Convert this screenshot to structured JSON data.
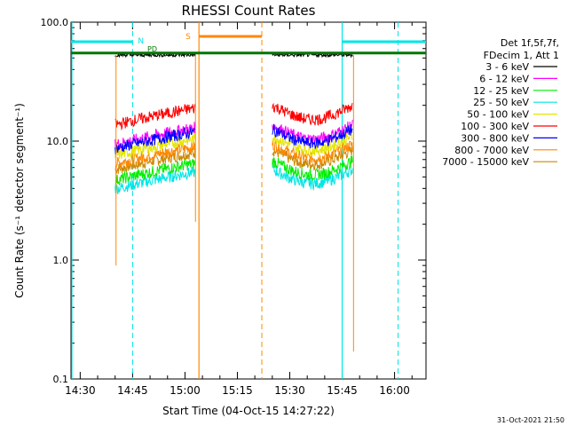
{
  "chart_data": {
    "type": "line",
    "title": "RHESSI Count Rates",
    "xlabel": "Start Time (04-Oct-15 14:27:22)",
    "ylabel": "Count Rate (s⁻¹ detector segment⁻¹)",
    "yscale": "log",
    "ylim": [
      0.1,
      100.0
    ],
    "xlim": [
      "14:27:22",
      "16:09:00"
    ],
    "x_ticks": [
      "14:30",
      "14:45",
      "15:00",
      "15:15",
      "15:30",
      "15:45",
      "16:00"
    ],
    "y_ticks": [
      "0.1",
      "1.0",
      "10.0",
      "100.0"
    ],
    "legend_header": [
      "Det 1f,5f,7f,",
      "FDecim 1, Att 1"
    ],
    "legend_position": "right",
    "series": [
      {
        "name": "3 - 6 keV",
        "color": "#000000",
        "level": 53
      },
      {
        "name": "6 - 12 keV",
        "color": "#ff00ff",
        "level": 13
      },
      {
        "name": "12 - 25 keV",
        "color": "#00ee00",
        "level": 6.5
      },
      {
        "name": "25 - 50 keV",
        "color": "#00e5e5",
        "level": 5.5
      },
      {
        "name": "50 - 100 keV",
        "color": "#e5e500",
        "level": 10.5
      },
      {
        "name": "100 - 300 keV",
        "color": "#ff0000",
        "level": 19
      },
      {
        "name": "300 - 800 keV",
        "color": "#0000ff",
        "level": 12
      },
      {
        "name": "800 - 7000 keV",
        "color": "#ff8800",
        "level": 9
      },
      {
        "name": "7000 - 15000 keV",
        "color": "#cc8800",
        "level": 8
      }
    ],
    "data_intervals": [
      [
        "14:40",
        "15:03"
      ],
      [
        "15:25",
        "15:48"
      ]
    ],
    "markers": [
      {
        "label": "N",
        "color": "#00e5e5",
        "times": [
          "14:27:22",
          "14:45",
          "15:45",
          "16:01"
        ]
      },
      {
        "label": "S",
        "color": "#ff8800",
        "times": [
          "15:04",
          "15:22"
        ]
      },
      {
        "label": "PD",
        "color": "#007700",
        "times": []
      }
    ],
    "attenuator_level": 55,
    "footer": "31-Oct-2021 21:50"
  }
}
